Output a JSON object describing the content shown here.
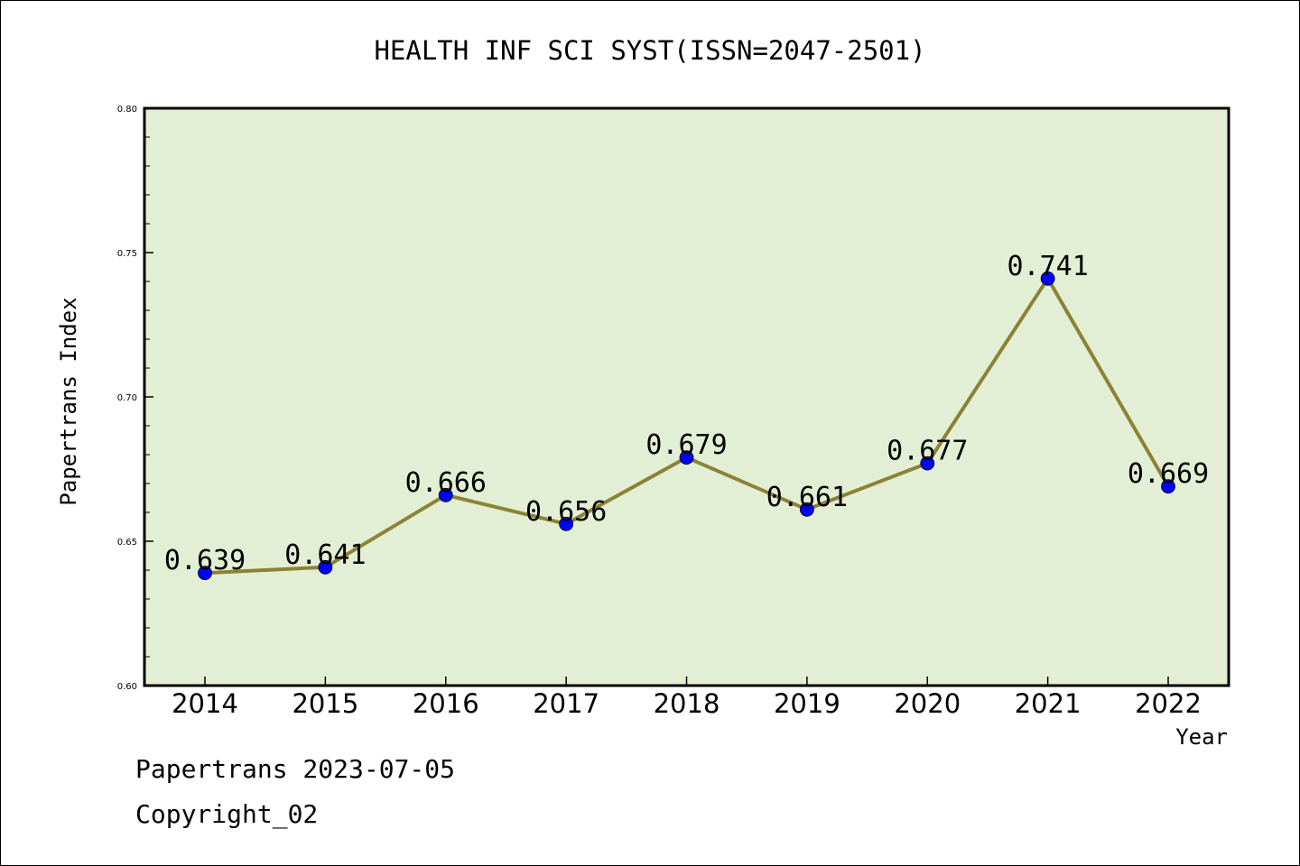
{
  "chart_data": {
    "type": "line",
    "title": "HEALTH INF SCI SYST(ISSN=2047-2501)",
    "xlabel": "Year",
    "ylabel": "Papertrans Index",
    "x": [
      "2014",
      "2015",
      "2016",
      "2017",
      "2018",
      "2019",
      "2020",
      "2021",
      "2022"
    ],
    "series": [
      {
        "values": [
          0.639,
          0.641,
          0.666,
          0.656,
          0.679,
          0.661,
          0.677,
          0.741,
          0.669
        ],
        "labels": [
          "0.639",
          "0.641",
          "0.666",
          "0.656",
          "0.679",
          "0.661",
          "0.677",
          "0.741",
          "0.669"
        ],
        "line_color": "#8b8236",
        "marker_color": "#0000ff"
      }
    ],
    "ylim": [
      0.6,
      0.8
    ],
    "yticks": [
      "0.60",
      "0.65",
      "0.70",
      "0.75",
      "0.80"
    ],
    "plot_background": "#e2efd4",
    "grid": false,
    "legend": "none"
  },
  "footer": {
    "source": "Papertrans 2023-07-05",
    "copyright": "Copyright_02"
  }
}
